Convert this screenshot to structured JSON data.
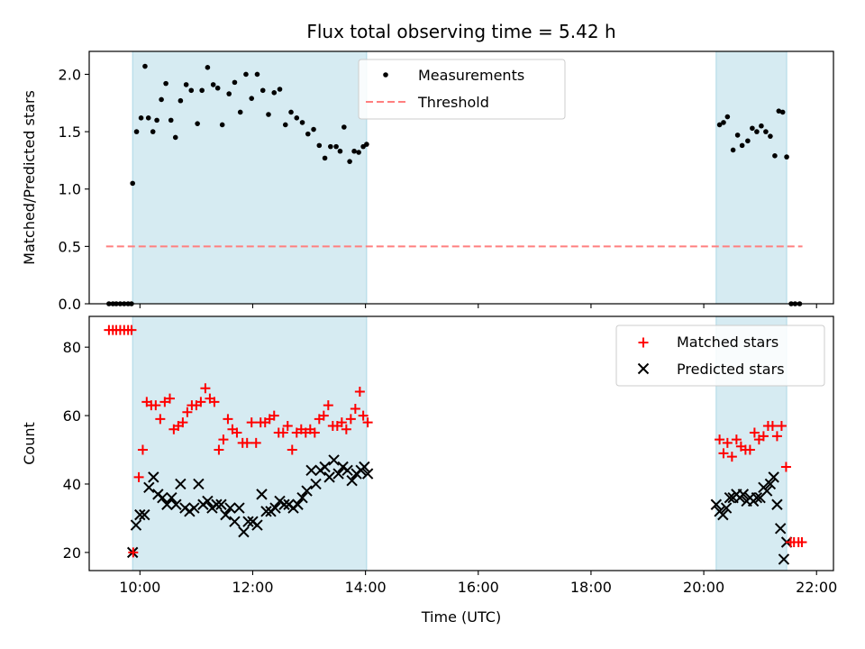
{
  "chart_data": [
    {
      "type": "scatter",
      "title": "Flux total observing time = 5.42 h",
      "xlabel": "",
      "ylabel": "Matched/Predicted stars",
      "xlim": [
        9.1,
        22.3
      ],
      "ylim": [
        0.0,
        2.2
      ],
      "x_ticks": [
        "10:00",
        "12:00",
        "14:00",
        "16:00",
        "18:00",
        "20:00",
        "22:00"
      ],
      "y_ticks": [
        "0.0",
        "0.5",
        "1.0",
        "1.5",
        "2.0"
      ],
      "shaded_intervals": [
        [
          9.87,
          14.02
        ],
        [
          20.22,
          21.47
        ]
      ],
      "legend": {
        "placement": "top-center",
        "entries": [
          "Measurements",
          "Threshold"
        ]
      },
      "colors": {
        "measurements": "#000000",
        "threshold": "#ff7f7f",
        "shade": "#add8e6"
      },
      "series": [
        {
          "name": "Measurements",
          "x": [
            9.45,
            9.52,
            9.58,
            9.65,
            9.72,
            9.79,
            9.85,
            9.87,
            9.94,
            10.02,
            10.09,
            10.15,
            10.23,
            10.3,
            10.38,
            10.46,
            10.55,
            10.63,
            10.72,
            10.82,
            10.91,
            11.02,
            11.1,
            11.2,
            11.3,
            11.38,
            11.46,
            11.58,
            11.68,
            11.78,
            11.88,
            11.98,
            12.08,
            12.18,
            12.28,
            12.38,
            12.48,
            12.58,
            12.68,
            12.78,
            12.88,
            12.98,
            13.08,
            13.18,
            13.28,
            13.38,
            13.48,
            13.55,
            13.62,
            13.72,
            13.8,
            13.88,
            13.96,
            14.02,
            20.28,
            20.35,
            20.42,
            20.52,
            20.6,
            20.68,
            20.78,
            20.86,
            20.94,
            21.02,
            21.1,
            21.18,
            21.26,
            21.33,
            21.4,
            21.47,
            21.55,
            21.62,
            21.7
          ],
          "y": [
            0,
            0,
            0,
            0,
            0,
            0,
            0,
            1.05,
            1.5,
            1.62,
            2.07,
            1.62,
            1.5,
            1.6,
            1.78,
            1.92,
            1.6,
            1.45,
            1.77,
            1.91,
            1.86,
            1.57,
            1.86,
            2.06,
            1.91,
            1.88,
            1.56,
            1.83,
            1.93,
            1.67,
            2.0,
            1.79,
            2.0,
            1.86,
            1.65,
            1.84,
            1.87,
            1.56,
            1.67,
            1.62,
            1.58,
            1.48,
            1.52,
            1.38,
            1.27,
            1.37,
            1.37,
            1.33,
            1.54,
            1.24,
            1.33,
            1.32,
            1.37,
            1.39,
            1.56,
            1.58,
            1.63,
            1.34,
            1.47,
            1.38,
            1.42,
            1.53,
            1.5,
            1.55,
            1.5,
            1.46,
            1.29,
            1.68,
            1.67,
            1.28,
            0,
            0,
            0
          ]
        },
        {
          "name": "Threshold",
          "x": [
            9.4,
            21.75
          ],
          "y": [
            0.5,
            0.5
          ]
        }
      ]
    },
    {
      "type": "scatter",
      "title": "",
      "xlabel": "Time (UTC)",
      "ylabel": "Count",
      "xlim": [
        9.1,
        22.3
      ],
      "ylim": [
        14.7,
        89.0
      ],
      "x_ticks": [
        "10:00",
        "12:00",
        "14:00",
        "16:00",
        "18:00",
        "20:00",
        "22:00"
      ],
      "y_ticks": [
        "20",
        "40",
        "60",
        "80"
      ],
      "shaded_intervals": [
        [
          9.87,
          14.02
        ],
        [
          20.22,
          21.47
        ]
      ],
      "legend": {
        "placement": "top-right",
        "entries": [
          "Matched stars",
          "Predicted stars"
        ]
      },
      "colors": {
        "matched": "#ff0000",
        "predicted": "#000000",
        "shade": "#add8e6"
      },
      "series": [
        {
          "name": "Matched stars",
          "x": [
            9.45,
            9.52,
            9.58,
            9.65,
            9.72,
            9.79,
            9.85,
            9.88,
            9.98,
            10.05,
            10.12,
            10.2,
            10.28,
            10.36,
            10.44,
            10.53,
            10.6,
            10.68,
            10.76,
            10.84,
            10.92,
            11.0,
            11.08,
            11.16,
            11.24,
            11.32,
            11.4,
            11.48,
            11.56,
            11.64,
            11.72,
            11.82,
            11.9,
            11.98,
            12.06,
            12.14,
            12.22,
            12.3,
            12.38,
            12.46,
            12.54,
            12.62,
            12.7,
            12.78,
            12.86,
            12.94,
            13.02,
            13.1,
            13.18,
            13.26,
            13.34,
            13.42,
            13.5,
            13.58,
            13.66,
            13.74,
            13.82,
            13.9,
            13.96,
            14.04,
            20.28,
            20.35,
            20.42,
            20.5,
            20.58,
            20.66,
            20.74,
            20.82,
            20.9,
            20.98,
            21.06,
            21.14,
            21.22,
            21.3,
            21.38,
            21.46,
            21.54,
            21.6,
            21.68,
            21.74
          ],
          "y": [
            85,
            85,
            85,
            85,
            85,
            85,
            85,
            20,
            42,
            50,
            64,
            63,
            63,
            59,
            64,
            65,
            56,
            57,
            58,
            61,
            63,
            63,
            64,
            68,
            65,
            64,
            50,
            53,
            59,
            56,
            55,
            52,
            52,
            58,
            52,
            58,
            58,
            59,
            60,
            55,
            55,
            57,
            50,
            55,
            56,
            55,
            56,
            55,
            59,
            60,
            63,
            57,
            57,
            58,
            56,
            59,
            62,
            67,
            60,
            58,
            53,
            49,
            52,
            48,
            53,
            51,
            50,
            50,
            55,
            53,
            54,
            57,
            57,
            54,
            57,
            45,
            23,
            23,
            23,
            23
          ]
        },
        {
          "name": "Predicted stars",
          "x": [
            9.87,
            9.93,
            10.0,
            10.08,
            10.16,
            10.24,
            10.32,
            10.4,
            10.48,
            10.56,
            10.64,
            10.72,
            10.8,
            10.88,
            10.96,
            11.04,
            11.12,
            11.2,
            11.28,
            11.36,
            11.44,
            11.52,
            11.6,
            11.68,
            11.76,
            11.84,
            11.92,
            12.0,
            12.08,
            12.16,
            12.24,
            12.32,
            12.4,
            12.48,
            12.56,
            12.64,
            12.72,
            12.8,
            12.88,
            12.96,
            13.04,
            13.12,
            13.2,
            13.28,
            13.36,
            13.44,
            13.52,
            13.6,
            13.68,
            13.76,
            13.84,
            13.92,
            13.98,
            14.04,
            20.22,
            20.28,
            20.34,
            20.4,
            20.46,
            20.52,
            20.58,
            20.64,
            20.7,
            20.76,
            20.82,
            20.88,
            20.94,
            21.0,
            21.06,
            21.12,
            21.18,
            21.24,
            21.3,
            21.36,
            21.42,
            21.47
          ],
          "y": [
            20,
            28,
            31,
            31,
            39,
            42,
            37,
            36,
            34,
            36,
            34,
            40,
            33,
            32,
            33,
            40,
            34,
            35,
            33,
            34,
            34,
            31,
            33,
            29,
            33,
            26,
            29,
            29,
            28,
            37,
            32,
            32,
            33,
            35,
            34,
            34,
            33,
            34,
            36,
            38,
            44,
            40,
            44,
            45,
            42,
            47,
            43,
            45,
            44,
            41,
            43,
            44,
            45,
            43,
            34,
            32,
            31,
            33,
            36,
            36,
            37,
            36,
            37,
            35,
            36,
            35,
            36,
            36,
            39,
            38,
            40,
            42,
            34,
            27,
            18,
            23
          ]
        }
      ]
    }
  ]
}
